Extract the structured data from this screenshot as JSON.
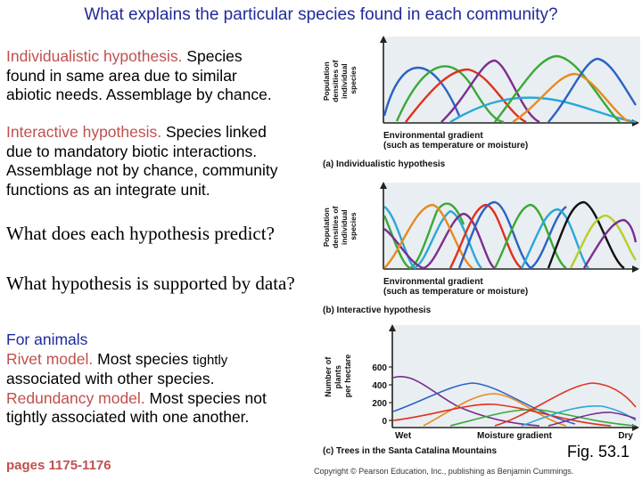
{
  "title": "What explains the particular species found in each community?",
  "individualistic": {
    "name": "Individualistic hypothesis.",
    "line1_rest": " Species",
    "line2": "found in same area due to similar",
    "line3": "abiotic needs. Assemblage by chance."
  },
  "interactive": {
    "name": "Interactive hypothesis.",
    "line1_rest": "  Species linked",
    "line2": "due to mandatory biotic interactions.",
    "line3": "Assemblage not by chance, community",
    "line4": "functions as an integrate unit."
  },
  "question1": "What does each hypothesis predict?",
  "question2": "What hypothesis is supported by data?",
  "animals": {
    "heading": "For animals",
    "rivet_name": "Rivet model.",
    "rivet_rest": " Most species ",
    "rivet_tail": "tightly",
    "rivet_line2": "associated with other species.",
    "redundancy_name": "Redundancy model.",
    "redundancy_rest": "  Most species not",
    "redundancy_line2": "tightly associated with one another."
  },
  "pages": "pages 1175-1176",
  "fig_label": "Fig. 53.1",
  "copyright": "Copyright © Pearson Education, Inc., publishing as Benjamin Cummings.",
  "panels": [
    {
      "ylabel_lines": [
        "Population",
        "densities of",
        "individual",
        "species"
      ],
      "xlabel_lines": [
        "Environmental gradient",
        "(such as temperature or moisture)"
      ],
      "caption": "(a) Individualistic hypothesis"
    },
    {
      "ylabel_lines": [
        "Population",
        "densities of",
        "individual",
        "species"
      ],
      "xlabel_lines": [
        "Environmental gradient",
        "(such as temperature or moisture)"
      ],
      "caption": "(b)  Interactive hypothesis"
    },
    {
      "ylabel_lines": [
        "Number of",
        "plants",
        "per hectare"
      ],
      "y_ticks": [
        "600",
        "400",
        "200",
        "0"
      ],
      "x_left": "Wet",
      "x_mid": "Moisture gradient",
      "x_right": "Dry",
      "caption": "(c) Trees in the Santa Catalina Mountains"
    }
  ],
  "colors": {
    "plot_bg": "#e9eef2",
    "title": "#1f2a9a",
    "highlight": "#c0504d",
    "curve_green": "#3aa935",
    "curve_blue": "#2a62c4",
    "curve_red": "#e0301e",
    "curve_cyan": "#2aa8d8",
    "curve_orange": "#e88a1e",
    "curve_purple": "#7b2f8e",
    "curve_yellowgreen": "#b6cf2a",
    "curve_black": "#111111"
  }
}
